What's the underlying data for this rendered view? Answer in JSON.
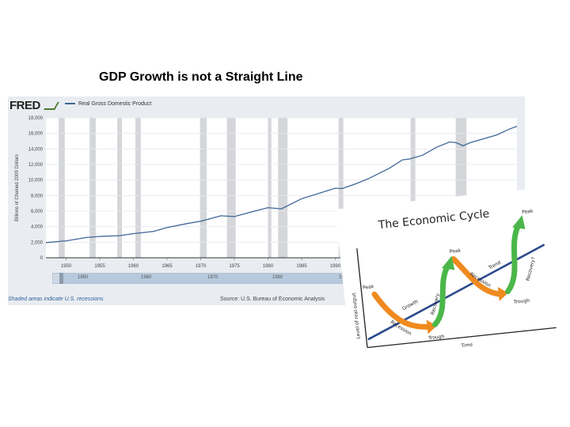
{
  "slide": {
    "title": "GDP Growth is not a Straight Line"
  },
  "fred": {
    "logo": "FRED",
    "legend": "Real Gross Domestic Product",
    "footer_note": "Shaded areas indicate U.S. recessions",
    "footer_source": "Source: U.S. Bureau of Economic Analysis",
    "slider_labels": [
      "1950",
      "1960",
      "1970",
      "1980",
      "1990"
    ],
    "line_color": "#3e6797",
    "recession_color": "#d4d6d9"
  },
  "chart_data": [
    {
      "type": "line",
      "title": "",
      "legend": [
        "Real Gross Domestic Product"
      ],
      "ylabel": "Billions of Chained 2009 Dollars",
      "xlabel": "",
      "ylim": [
        0,
        18000
      ],
      "xlim": [
        1947,
        2017
      ],
      "y_ticks": [
        "0",
        "2,000",
        "4,000",
        "6,000",
        "8,000",
        "10,000",
        "12,000",
        "14,000",
        "16,000",
        "18,000"
      ],
      "x_ticks": [
        "1950",
        "1955",
        "1960",
        "1965",
        "1970",
        "1975",
        "1980",
        "1985",
        "1990"
      ],
      "recessions": [
        [
          1948.9,
          1949.8
        ],
        [
          1953.5,
          1954.4
        ],
        [
          1957.6,
          1958.3
        ],
        [
          1960.3,
          1961.1
        ],
        [
          1969.9,
          1970.9
        ],
        [
          1973.9,
          1975.2
        ],
        [
          1980.0,
          1980.5
        ],
        [
          1981.5,
          1982.9
        ],
        [
          1990.5,
          1991.2
        ],
        [
          2001.2,
          2001.9
        ],
        [
          2007.9,
          2009.5
        ]
      ],
      "series": [
        {
          "name": "Real Gross Domestic Product",
          "x": [
            1947,
            1950,
            1953,
            1955,
            1958,
            1960,
            1963,
            1965,
            1968,
            1970,
            1973,
            1975,
            1978,
            1980,
            1982,
            1985,
            1988,
            1990,
            1991,
            1993,
            1995,
            1998,
            2000,
            2001,
            2003,
            2005,
            2007,
            2008,
            2009,
            2010,
            2012,
            2014,
            2016,
            2017
          ],
          "y": [
            1950,
            2180,
            2600,
            2750,
            2850,
            3100,
            3400,
            3900,
            4400,
            4700,
            5400,
            5300,
            6000,
            6450,
            6300,
            7600,
            8400,
            8950,
            8900,
            9500,
            10200,
            11500,
            12600,
            12700,
            13200,
            14200,
            14900,
            14800,
            14400,
            14800,
            15300,
            15800,
            16600,
            16900
          ]
        }
      ]
    },
    {
      "type": "diagram",
      "title": "The Economic Cycle",
      "ylabel": "Level of real output",
      "xlabel": "Time",
      "labels": [
        "Peak",
        "Peak",
        "Peak",
        "Trend",
        "Growth",
        "Recovery",
        "Recession",
        "Recovery?",
        "Recession",
        "Trough",
        "Trough"
      ]
    }
  ]
}
